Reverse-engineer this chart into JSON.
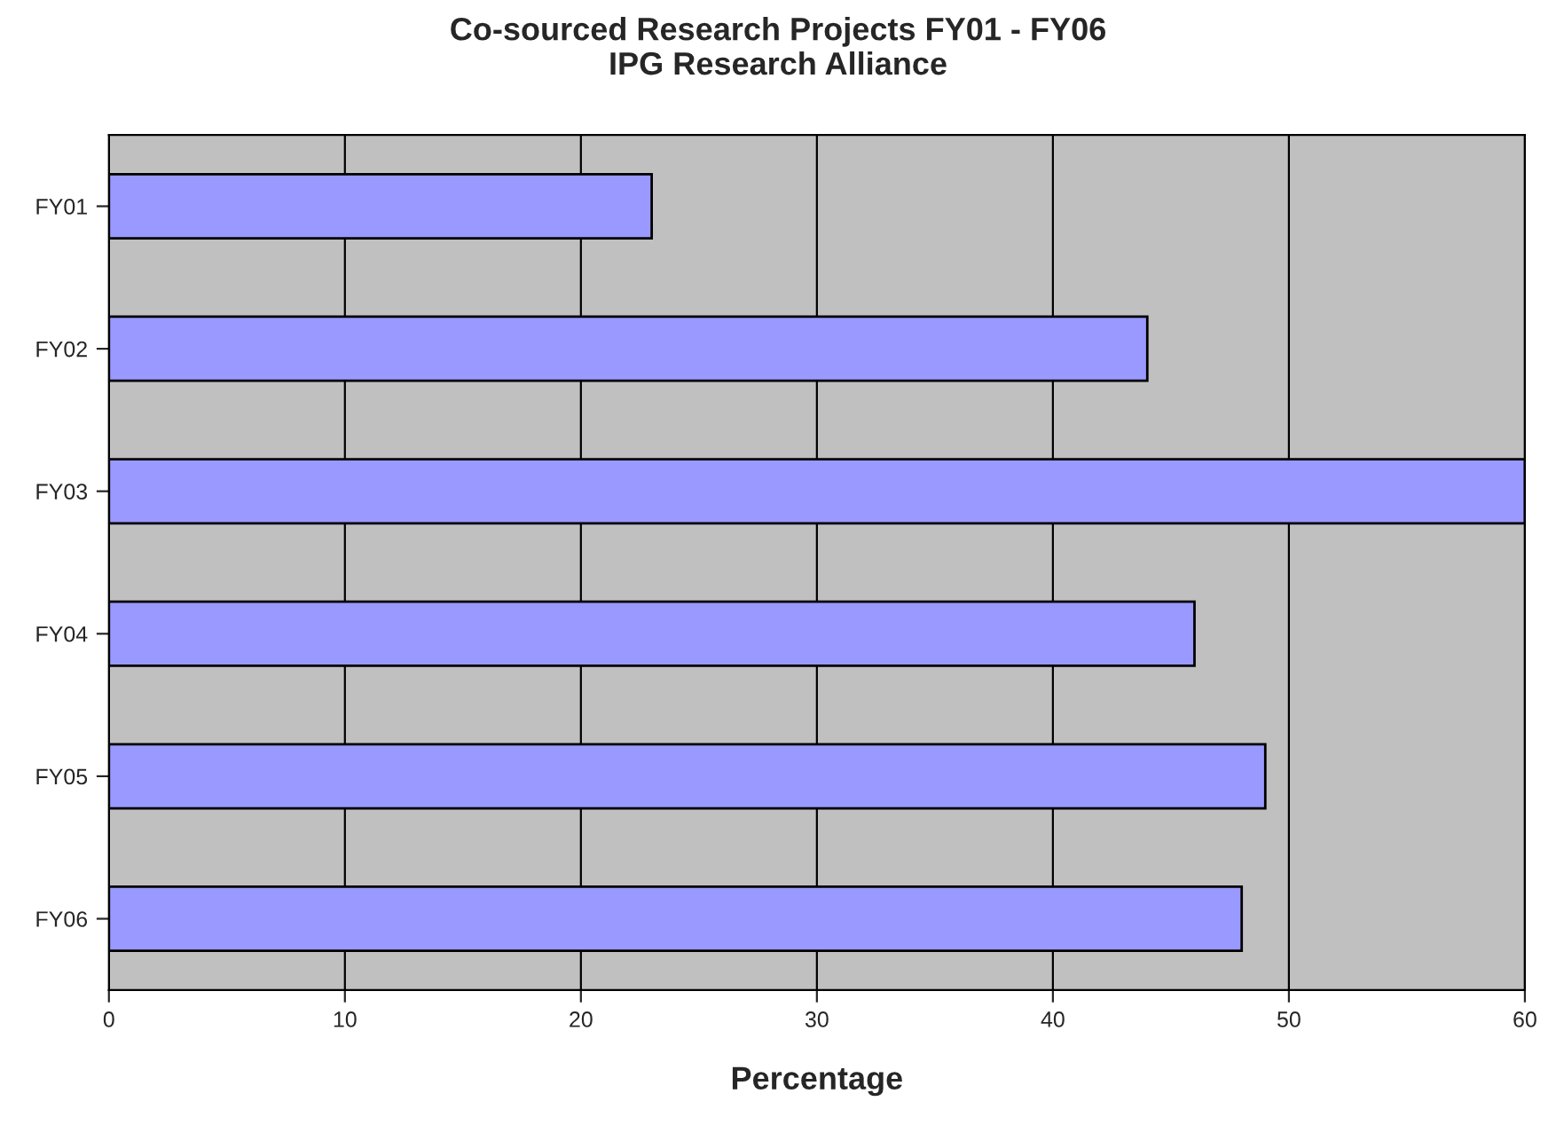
{
  "chart_data": {
    "type": "bar",
    "orientation": "horizontal",
    "title": "Co-sourced Research Projects FY01 - FY06",
    "subtitle": "IPG Research Alliance",
    "xlabel": "Percentage",
    "categories": [
      "FY01",
      "FY02",
      "FY03",
      "FY04",
      "FY05",
      "FY06"
    ],
    "values": [
      23,
      44,
      60,
      46,
      49,
      48
    ],
    "color": "#9999ff",
    "xlim": [
      0,
      60
    ],
    "xticks": [
      0,
      10,
      20,
      30,
      40,
      50,
      60
    ],
    "grid": "x"
  }
}
